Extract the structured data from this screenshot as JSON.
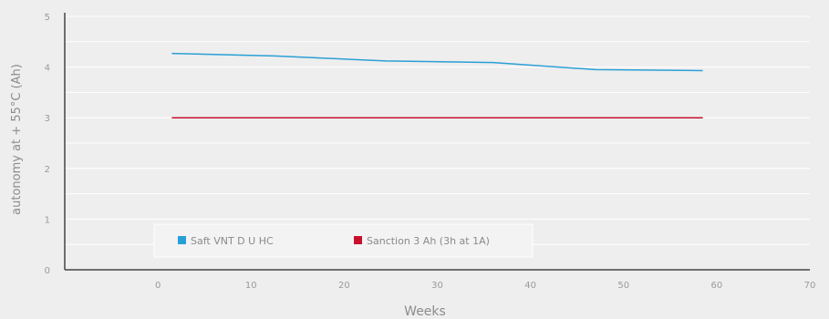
{
  "chart_data": {
    "type": "line",
    "title": "",
    "xlabel": "Weeks",
    "ylabel": "autonomy at + 55°C (Ah)",
    "xlim": [
      -10,
      70
    ],
    "ylim": [
      0,
      5
    ],
    "x_ticks": [
      0,
      10,
      20,
      30,
      40,
      50,
      60,
      70
    ],
    "y_ticks": [
      0,
      1,
      2,
      3,
      4,
      5
    ],
    "grid": "horizontal",
    "legend_position": "bottom-left",
    "series": [
      {
        "name": "Saft VNT D U HC",
        "color": "#2a9fd6",
        "x": [
          1.5,
          12.5,
          24.5,
          36,
          47,
          58.5
        ],
        "y": [
          4.27,
          4.22,
          4.12,
          4.09,
          3.95,
          3.93
        ]
      },
      {
        "name": "Sanction 3 Ah (3h at 1A)",
        "color": "#c8102e",
        "x": [
          1.5,
          58.5
        ],
        "y": [
          3.0,
          3.0
        ]
      }
    ]
  }
}
